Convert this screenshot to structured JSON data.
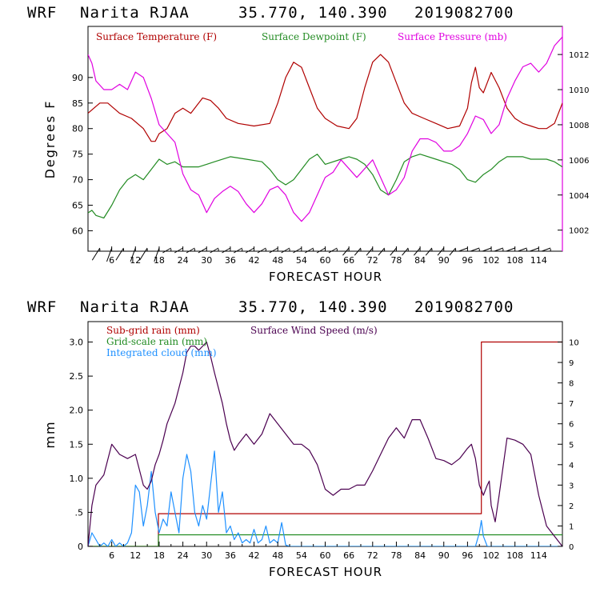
{
  "chart_data": [
    {
      "type": "line",
      "header": {
        "model": "WRF",
        "station": "Narita RJAA",
        "coords": "35.770, 140.390",
        "init": "2019082700"
      },
      "xlabel": "FORECAST HOUR",
      "ylabel": "Degrees F",
      "xlim": [
        0,
        120
      ],
      "ylim": [
        56,
        100
      ],
      "y2lim": [
        1000.8,
        1013.6
      ],
      "xticks": [
        6,
        12,
        18,
        24,
        30,
        36,
        42,
        48,
        54,
        60,
        66,
        72,
        78,
        84,
        90,
        96,
        102,
        108,
        114
      ],
      "yticks": [
        60,
        65,
        70,
        75,
        80,
        85,
        90
      ],
      "y2ticks": [
        1002,
        1004,
        1006,
        1008,
        1010,
        1012
      ],
      "colors": {
        "temp": "#b00000",
        "dew": "#228b22",
        "pres": "#e000e0"
      },
      "series": [
        {
          "name": "Surface Temperature (F)",
          "axis": "left",
          "x": [
            0,
            3,
            5,
            8,
            11,
            14,
            16,
            17,
            18,
            20,
            22,
            24,
            26,
            28,
            29,
            31,
            33,
            35,
            38,
            42,
            46,
            48,
            50,
            52,
            54,
            56,
            58,
            60,
            63,
            66,
            68,
            70,
            72,
            74,
            76,
            78,
            80,
            82,
            85,
            88,
            91,
            94,
            96,
            97,
            98,
            99,
            100,
            101,
            102,
            104,
            106,
            108,
            110,
            112,
            114,
            116,
            118,
            120
          ],
          "y": [
            83,
            85,
            85,
            83,
            82,
            80,
            77.5,
            77.5,
            79,
            80,
            83,
            84,
            83,
            85,
            86,
            85.5,
            84,
            82,
            81,
            80.5,
            81,
            85,
            90,
            93,
            92,
            88,
            84,
            82,
            80.5,
            80,
            82,
            88,
            93,
            94.5,
            93,
            89,
            85,
            83,
            82,
            81,
            80,
            80.5,
            84,
            89,
            92,
            88,
            87,
            89,
            91,
            88,
            84,
            82,
            81,
            80.5,
            80,
            80,
            81,
            85
          ]
        },
        {
          "name": "Surface Dewpoint (F)",
          "axis": "left",
          "x": [
            0,
            1,
            2,
            4,
            6,
            8,
            10,
            12,
            14,
            16,
            18,
            20,
            22,
            24,
            26,
            28,
            30,
            32,
            36,
            40,
            44,
            46,
            48,
            50,
            52,
            54,
            56,
            58,
            60,
            64,
            66,
            68,
            70,
            72,
            74,
            76,
            78,
            80,
            82,
            84,
            88,
            92,
            94,
            96,
            98,
            100,
            102,
            104,
            106,
            108,
            110,
            112,
            114,
            116,
            118,
            120
          ],
          "y": [
            63.5,
            64,
            63,
            62.5,
            65,
            68,
            70,
            71,
            70,
            72,
            74,
            73,
            73.5,
            72.5,
            72.5,
            72.5,
            73,
            73.5,
            74.5,
            74,
            73.5,
            72,
            70,
            69,
            70,
            72,
            74,
            75,
            73,
            74,
            74.5,
            74,
            73,
            71,
            68,
            67,
            70,
            73.5,
            74.5,
            75,
            74,
            73,
            72,
            70,
            69.5,
            71,
            72,
            73.5,
            74.5,
            74.5,
            74.5,
            74,
            74,
            74,
            73.5,
            72.5
          ]
        },
        {
          "name": "Surface Pressure (mb)",
          "axis": "right",
          "x": [
            0,
            1,
            2,
            4,
            6,
            8,
            10,
            12,
            14,
            16,
            18,
            20,
            22,
            24,
            26,
            28,
            30,
            32,
            34,
            36,
            38,
            40,
            42,
            44,
            46,
            48,
            50,
            52,
            54,
            56,
            58,
            60,
            62,
            64,
            66,
            68,
            70,
            72,
            74,
            76,
            78,
            80,
            82,
            84,
            86,
            88,
            90,
            92,
            94,
            96,
            98,
            100,
            102,
            104,
            106,
            108,
            110,
            112,
            114,
            116,
            118,
            120
          ],
          "y": [
            1012,
            1011.5,
            1010.5,
            1010,
            1010,
            1010.3,
            1010,
            1011,
            1010.7,
            1009.5,
            1008,
            1007.5,
            1007,
            1005.2,
            1004.3,
            1004,
            1003,
            1003.8,
            1004.2,
            1004.5,
            1004.2,
            1003.5,
            1003,
            1003.5,
            1004.3,
            1004.5,
            1004,
            1003,
            1002.5,
            1003,
            1004,
            1005,
            1005.3,
            1006,
            1005.5,
            1005,
            1005.5,
            1006,
            1005,
            1004,
            1004.3,
            1005,
            1006.5,
            1007.2,
            1007.2,
            1007,
            1006.5,
            1006.5,
            1006.8,
            1007.5,
            1008.5,
            1008.3,
            1007.5,
            1008,
            1009.5,
            1010.5,
            1011.3,
            1011.5,
            1011,
            1011.5,
            1012.5,
            1013
          ]
        }
      ],
      "legend": [
        "Surface Temperature (F)",
        "Surface Dewpoint (F)",
        "Surface Pressure (mb)"
      ]
    },
    {
      "type": "line",
      "header": {
        "model": "WRF",
        "station": "Narita RJAA",
        "coords": "35.770, 140.390",
        "init": "2019082700"
      },
      "xlabel": "FORECAST HOUR",
      "ylabel": "mm",
      "xlim": [
        0,
        120
      ],
      "ylim": [
        0,
        3.3
      ],
      "y2lim": [
        0,
        11
      ],
      "xticks": [
        6,
        12,
        18,
        24,
        30,
        36,
        42,
        48,
        54,
        60,
        66,
        72,
        78,
        84,
        90,
        96,
        102,
        108,
        114
      ],
      "yticks": [
        {
          "v": 0,
          "t": "0"
        },
        {
          "v": 0.5,
          "t": ".5"
        },
        {
          "v": 1.0,
          "t": "1.0"
        },
        {
          "v": 1.5,
          "t": "1.5"
        },
        {
          "v": 2.0,
          "t": "2.0"
        },
        {
          "v": 2.5,
          "t": "2.5"
        },
        {
          "v": 3.0,
          "t": "3.0"
        }
      ],
      "y2ticks": [
        0,
        1,
        2,
        3,
        4,
        5,
        6,
        7,
        8,
        9,
        10
      ],
      "colors": {
        "subgrid": "#b00000",
        "gridscale": "#228b22",
        "cloud": "#1e90ff",
        "wind": "#4b0050"
      },
      "series": [
        {
          "name": "Sub-grid rain (mm)",
          "axis": "left",
          "x": [
            0,
            17.8,
            17.8,
            99.5,
            99.5,
            120
          ],
          "y": [
            0,
            0,
            0.48,
            0.48,
            3.0,
            3.0
          ]
        },
        {
          "name": "Grid-scale rain (mm)",
          "axis": "left",
          "x": [
            0,
            17.8,
            17.8,
            120
          ],
          "y": [
            0,
            0,
            0.17,
            0.17
          ]
        },
        {
          "name": "Integrated cloud (mm)",
          "axis": "left",
          "x": [
            0,
            1,
            2,
            3,
            4,
            5,
            6,
            7,
            8,
            9,
            10,
            11,
            12,
            13,
            14,
            15,
            16,
            17,
            18,
            19,
            20,
            21,
            22,
            23,
            24,
            25,
            26,
            27,
            28,
            29,
            30,
            31,
            32,
            33,
            34,
            35,
            36,
            37,
            38,
            39,
            40,
            41,
            42,
            43,
            44,
            45,
            46,
            47,
            48,
            49,
            50,
            51,
            60,
            90,
            98,
            99,
            99.5,
            100,
            101,
            102,
            120
          ],
          "y": [
            0,
            0.2,
            0.1,
            0,
            0.05,
            0,
            0.1,
            0,
            0.05,
            0,
            0.05,
            0.2,
            0.9,
            0.8,
            0.3,
            0.6,
            1.1,
            0.5,
            0.2,
            0.4,
            0.3,
            0.8,
            0.5,
            0.2,
            1.0,
            1.35,
            1.1,
            0.5,
            0.3,
            0.6,
            0.4,
            0.9,
            1.4,
            0.5,
            0.8,
            0.2,
            0.3,
            0.1,
            0.2,
            0.05,
            0.1,
            0.05,
            0.25,
            0.05,
            0.1,
            0.3,
            0.05,
            0.1,
            0.05,
            0.35,
            0.02,
            0,
            0,
            0,
            0,
            0.2,
            0.38,
            0.15,
            0,
            0,
            0
          ]
        },
        {
          "name": "Surface Wind Speed (m/s)",
          "axis": "right",
          "x": [
            0,
            1,
            2,
            4,
            6,
            8,
            10,
            12,
            14,
            15,
            16,
            17,
            18,
            19,
            20,
            22,
            24,
            25,
            26,
            27,
            28,
            30,
            31,
            32,
            34,
            35,
            36,
            37,
            38,
            40,
            42,
            44,
            46,
            48,
            50,
            52,
            54,
            56,
            58,
            60,
            62,
            64,
            66,
            68,
            70,
            72,
            74,
            76,
            78,
            80,
            82,
            84,
            86,
            88,
            90,
            92,
            94,
            96,
            97,
            98,
            99,
            100,
            101,
            101.5,
            102,
            103,
            104,
            106,
            108,
            110,
            112,
            114,
            116,
            118,
            120
          ],
          "y": [
            0,
            2,
            3,
            3.5,
            5,
            4.5,
            4.3,
            4.5,
            3,
            2.8,
            3.2,
            4,
            4.5,
            5.2,
            6,
            7,
            8.5,
            9.5,
            9.8,
            9.8,
            9.6,
            10,
            9.3,
            8.5,
            7,
            6,
            5.2,
            4.7,
            5,
            5.5,
            5,
            5.5,
            6.5,
            6,
            5.5,
            5,
            5,
            4.7,
            4,
            2.8,
            2.5,
            2.8,
            2.8,
            3,
            3,
            3.7,
            4.5,
            5.3,
            5.8,
            5.3,
            6.2,
            6.2,
            5.3,
            4.3,
            4.2,
            4,
            4.3,
            4.8,
            5,
            4.3,
            3,
            2.5,
            3,
            3.2,
            2,
            1.2,
            2.5,
            5.3,
            5.2,
            5,
            4.5,
            2.5,
            1,
            0.5,
            0
          ]
        }
      ],
      "legend": [
        "Sub-grid rain (mm)",
        "Surface Wind Speed (m/s)",
        "Grid-scale rain (mm)",
        "Integrated cloud (mm)"
      ]
    }
  ]
}
